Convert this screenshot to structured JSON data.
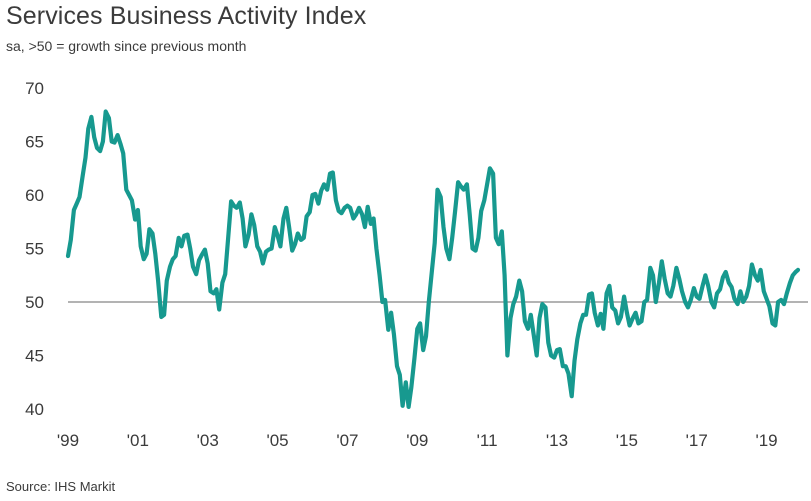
{
  "header": {
    "title": "Services Business Activity Index",
    "subtitle": "sa, >50 = growth since previous month"
  },
  "footer": {
    "source": "Source: IHS Markit"
  },
  "colors": {
    "line": "#17998f",
    "reference_line": "#9a9a9a",
    "text": "#3b3b3b"
  },
  "chart_data": {
    "type": "line",
    "title": "Services Business Activity Index",
    "subtitle": "sa, >50 = growth since previous month",
    "xlabel": "",
    "ylabel": "",
    "ylim": [
      40,
      70
    ],
    "yticks": [
      40,
      45,
      50,
      55,
      60,
      65,
      70
    ],
    "xticks": [
      {
        "x": 1999,
        "label": "'99"
      },
      {
        "x": 2001,
        "label": "'01"
      },
      {
        "x": 2003,
        "label": "'03"
      },
      {
        "x": 2005,
        "label": "'05"
      },
      {
        "x": 2007,
        "label": "'07"
      },
      {
        "x": 2009,
        "label": "'09"
      },
      {
        "x": 2011,
        "label": "'11"
      },
      {
        "x": 2013,
        "label": "'13"
      },
      {
        "x": 2015,
        "label": "'15"
      },
      {
        "x": 2017,
        "label": "'17"
      },
      {
        "x": 2019,
        "label": "'19"
      }
    ],
    "xlim": [
      1999.0,
      2019.9
    ],
    "reference_line": 50,
    "grid": false,
    "series": [
      {
        "name": "",
        "points": [
          [
            1999.0,
            54.3
          ],
          [
            1999.08,
            55.8
          ],
          [
            1999.17,
            58.6
          ],
          [
            1999.25,
            59.2
          ],
          [
            1999.33,
            59.8
          ],
          [
            1999.42,
            61.8
          ],
          [
            1999.5,
            63.5
          ],
          [
            1999.58,
            66.2
          ],
          [
            1999.67,
            67.3
          ],
          [
            1999.75,
            65.4
          ],
          [
            1999.83,
            64.4
          ],
          [
            1999.92,
            64.1
          ],
          [
            2000.0,
            65.0
          ],
          [
            2000.08,
            67.8
          ],
          [
            2000.17,
            67.2
          ],
          [
            2000.25,
            65.0
          ],
          [
            2000.33,
            64.9
          ],
          [
            2000.42,
            65.6
          ],
          [
            2000.5,
            64.8
          ],
          [
            2000.58,
            63.9
          ],
          [
            2000.67,
            60.5
          ],
          [
            2000.75,
            60.0
          ],
          [
            2000.83,
            59.5
          ],
          [
            2000.92,
            57.7
          ],
          [
            2001.0,
            58.6
          ],
          [
            2001.08,
            55.2
          ],
          [
            2001.17,
            54.0
          ],
          [
            2001.25,
            54.5
          ],
          [
            2001.33,
            56.8
          ],
          [
            2001.42,
            56.4
          ],
          [
            2001.5,
            54.5
          ],
          [
            2001.58,
            52.0
          ],
          [
            2001.67,
            48.6
          ],
          [
            2001.75,
            48.8
          ],
          [
            2001.83,
            52.0
          ],
          [
            2001.92,
            53.3
          ],
          [
            2002.0,
            54.0
          ],
          [
            2002.08,
            54.3
          ],
          [
            2002.17,
            56.0
          ],
          [
            2002.25,
            55.2
          ],
          [
            2002.33,
            56.2
          ],
          [
            2002.42,
            56.3
          ],
          [
            2002.5,
            55.0
          ],
          [
            2002.58,
            53.3
          ],
          [
            2002.67,
            52.6
          ],
          [
            2002.75,
            53.9
          ],
          [
            2002.83,
            54.4
          ],
          [
            2002.92,
            54.9
          ],
          [
            2003.0,
            53.6
          ],
          [
            2003.08,
            51.0
          ],
          [
            2003.17,
            50.8
          ],
          [
            2003.25,
            51.2
          ],
          [
            2003.33,
            49.3
          ],
          [
            2003.42,
            51.8
          ],
          [
            2003.5,
            52.6
          ],
          [
            2003.58,
            55.8
          ],
          [
            2003.67,
            59.4
          ],
          [
            2003.75,
            59.0
          ],
          [
            2003.83,
            58.8
          ],
          [
            2003.92,
            59.3
          ],
          [
            2004.0,
            57.8
          ],
          [
            2004.08,
            55.2
          ],
          [
            2004.17,
            56.3
          ],
          [
            2004.25,
            58.2
          ],
          [
            2004.33,
            57.2
          ],
          [
            2004.42,
            55.2
          ],
          [
            2004.5,
            54.7
          ],
          [
            2004.58,
            53.6
          ],
          [
            2004.67,
            54.7
          ],
          [
            2004.75,
            54.9
          ],
          [
            2004.83,
            55.0
          ],
          [
            2004.92,
            57.0
          ],
          [
            2005.0,
            56.2
          ],
          [
            2005.08,
            55.2
          ],
          [
            2005.17,
            57.8
          ],
          [
            2005.25,
            58.8
          ],
          [
            2005.33,
            57.0
          ],
          [
            2005.42,
            54.8
          ],
          [
            2005.5,
            55.4
          ],
          [
            2005.58,
            56.4
          ],
          [
            2005.67,
            55.8
          ],
          [
            2005.75,
            56.0
          ],
          [
            2005.83,
            58.0
          ],
          [
            2005.92,
            58.4
          ],
          [
            2006.0,
            60.0
          ],
          [
            2006.08,
            60.1
          ],
          [
            2006.17,
            59.2
          ],
          [
            2006.25,
            60.4
          ],
          [
            2006.33,
            61.0
          ],
          [
            2006.42,
            60.5
          ],
          [
            2006.5,
            62.0
          ],
          [
            2006.58,
            62.1
          ],
          [
            2006.67,
            59.5
          ],
          [
            2006.75,
            58.5
          ],
          [
            2006.83,
            58.3
          ],
          [
            2006.92,
            58.8
          ],
          [
            2007.0,
            59.0
          ],
          [
            2007.08,
            58.8
          ],
          [
            2007.17,
            57.8
          ],
          [
            2007.25,
            58.2
          ],
          [
            2007.33,
            58.8
          ],
          [
            2007.42,
            58.2
          ],
          [
            2007.5,
            57.0
          ],
          [
            2007.58,
            58.9
          ],
          [
            2007.67,
            57.3
          ],
          [
            2007.75,
            57.8
          ],
          [
            2007.83,
            55.0
          ],
          [
            2007.92,
            52.5
          ],
          [
            2008.0,
            50.0
          ],
          [
            2008.08,
            50.2
          ],
          [
            2008.17,
            47.4
          ],
          [
            2008.25,
            49.0
          ],
          [
            2008.33,
            47.0
          ],
          [
            2008.42,
            44.0
          ],
          [
            2008.5,
            43.2
          ],
          [
            2008.58,
            40.3
          ],
          [
            2008.67,
            42.5
          ],
          [
            2008.75,
            40.2
          ],
          [
            2008.83,
            42.0
          ],
          [
            2008.92,
            44.8
          ],
          [
            2009.0,
            47.5
          ],
          [
            2009.08,
            48.0
          ],
          [
            2009.17,
            45.5
          ],
          [
            2009.25,
            46.8
          ],
          [
            2009.33,
            50.0
          ],
          [
            2009.42,
            53.0
          ],
          [
            2009.5,
            55.5
          ],
          [
            2009.58,
            60.5
          ],
          [
            2009.67,
            59.8
          ],
          [
            2009.75,
            57.0
          ],
          [
            2009.83,
            55.0
          ],
          [
            2009.92,
            54.0
          ],
          [
            2010.0,
            56.0
          ],
          [
            2010.08,
            58.4
          ],
          [
            2010.17,
            61.2
          ],
          [
            2010.25,
            60.8
          ],
          [
            2010.33,
            60.5
          ],
          [
            2010.42,
            61.0
          ],
          [
            2010.5,
            58.2
          ],
          [
            2010.58,
            55.0
          ],
          [
            2010.67,
            54.8
          ],
          [
            2010.75,
            56.0
          ],
          [
            2010.83,
            58.5
          ],
          [
            2010.92,
            59.5
          ],
          [
            2011.0,
            61.0
          ],
          [
            2011.08,
            62.5
          ],
          [
            2011.17,
            62.0
          ],
          [
            2011.25,
            56.0
          ],
          [
            2011.33,
            55.4
          ],
          [
            2011.42,
            56.6
          ],
          [
            2011.5,
            52.5
          ],
          [
            2011.58,
            45.0
          ],
          [
            2011.67,
            48.5
          ],
          [
            2011.75,
            49.8
          ],
          [
            2011.83,
            50.5
          ],
          [
            2011.92,
            52.0
          ],
          [
            2012.0,
            51.0
          ],
          [
            2012.08,
            48.2
          ],
          [
            2012.17,
            47.5
          ],
          [
            2012.25,
            48.8
          ],
          [
            2012.33,
            47.0
          ],
          [
            2012.42,
            45.0
          ],
          [
            2012.5,
            48.5
          ],
          [
            2012.58,
            49.8
          ],
          [
            2012.67,
            49.5
          ],
          [
            2012.75,
            46.2
          ],
          [
            2012.83,
            45.0
          ],
          [
            2012.92,
            44.8
          ],
          [
            2013.0,
            45.5
          ],
          [
            2013.08,
            45.6
          ],
          [
            2013.17,
            44.0
          ],
          [
            2013.25,
            44.0
          ],
          [
            2013.33,
            43.3
          ],
          [
            2013.42,
            41.2
          ],
          [
            2013.5,
            44.5
          ],
          [
            2013.58,
            46.5
          ],
          [
            2013.67,
            48.0
          ],
          [
            2013.75,
            48.8
          ],
          [
            2013.83,
            48.8
          ],
          [
            2013.92,
            50.7
          ],
          [
            2014.0,
            50.8
          ],
          [
            2014.08,
            49.0
          ],
          [
            2014.17,
            47.8
          ],
          [
            2014.25,
            48.9
          ],
          [
            2014.33,
            47.5
          ],
          [
            2014.42,
            50.8
          ],
          [
            2014.5,
            51.5
          ],
          [
            2014.58,
            49.5
          ],
          [
            2014.67,
            49.2
          ],
          [
            2014.75,
            48.0
          ],
          [
            2014.83,
            48.6
          ],
          [
            2014.92,
            50.5
          ],
          [
            2015.0,
            49.0
          ],
          [
            2015.08,
            47.8
          ],
          [
            2015.17,
            48.5
          ],
          [
            2015.25,
            49.0
          ],
          [
            2015.33,
            48.0
          ],
          [
            2015.42,
            48.2
          ],
          [
            2015.5,
            50.0
          ],
          [
            2015.58,
            50.2
          ],
          [
            2015.67,
            53.2
          ],
          [
            2015.75,
            52.5
          ],
          [
            2015.83,
            50.0
          ],
          [
            2015.92,
            51.8
          ],
          [
            2016.0,
            53.8
          ],
          [
            2016.08,
            52.2
          ],
          [
            2016.17,
            50.8
          ],
          [
            2016.25,
            50.5
          ],
          [
            2016.33,
            51.5
          ],
          [
            2016.42,
            53.2
          ],
          [
            2016.5,
            52.2
          ],
          [
            2016.58,
            51.0
          ],
          [
            2016.67,
            50.0
          ],
          [
            2016.75,
            49.5
          ],
          [
            2016.83,
            50.2
          ],
          [
            2016.92,
            51.3
          ],
          [
            2017.0,
            50.5
          ],
          [
            2017.08,
            50.3
          ],
          [
            2017.17,
            51.5
          ],
          [
            2017.25,
            52.5
          ],
          [
            2017.33,
            51.5
          ],
          [
            2017.42,
            50.0
          ],
          [
            2017.5,
            49.5
          ],
          [
            2017.58,
            50.8
          ],
          [
            2017.67,
            51.2
          ],
          [
            2017.75,
            52.3
          ],
          [
            2017.83,
            52.8
          ],
          [
            2017.92,
            51.8
          ],
          [
            2018.0,
            51.4
          ],
          [
            2018.08,
            50.3
          ],
          [
            2018.17,
            49.8
          ],
          [
            2018.25,
            51.0
          ],
          [
            2018.33,
            50.0
          ],
          [
            2018.42,
            50.5
          ],
          [
            2018.5,
            51.5
          ],
          [
            2018.58,
            53.5
          ],
          [
            2018.67,
            52.5
          ],
          [
            2018.75,
            52.0
          ],
          [
            2018.83,
            53.0
          ],
          [
            2018.92,
            51.0
          ],
          [
            2019.0,
            50.3
          ],
          [
            2019.08,
            49.6
          ],
          [
            2019.17,
            48.0
          ],
          [
            2019.25,
            47.8
          ],
          [
            2019.33,
            50.0
          ],
          [
            2019.42,
            50.2
          ],
          [
            2019.5,
            49.8
          ],
          [
            2019.58,
            50.8
          ],
          [
            2019.67,
            51.8
          ],
          [
            2019.75,
            52.5
          ],
          [
            2019.83,
            52.8
          ],
          [
            2019.9,
            53.0
          ]
        ]
      }
    ]
  }
}
